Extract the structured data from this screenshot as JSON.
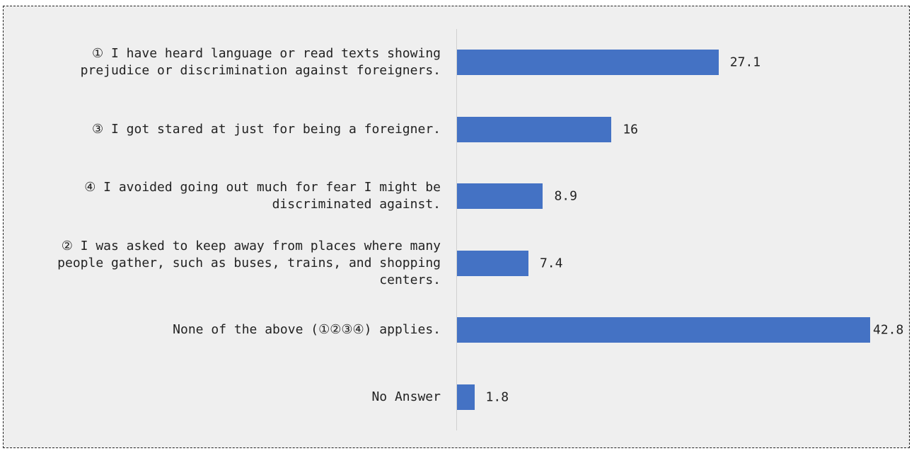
{
  "chart_data": {
    "type": "bar",
    "orientation": "horizontal",
    "categories": [
      "① I have heard language or read texts showing prejudice or discrimination against foreigners.",
      "③ I got stared at just for being a foreigner.",
      "④ I avoided going out much for fear I might be discriminated against.",
      "② I was asked to keep away from places where many people gather, such as buses, trains, and shopping centers.",
      "None of the above (①②③④) applies.",
      "No Answer"
    ],
    "values": [
      27.1,
      16,
      8.9,
      7.4,
      42.8,
      1.8
    ],
    "color": "#4472c4"
  }
}
